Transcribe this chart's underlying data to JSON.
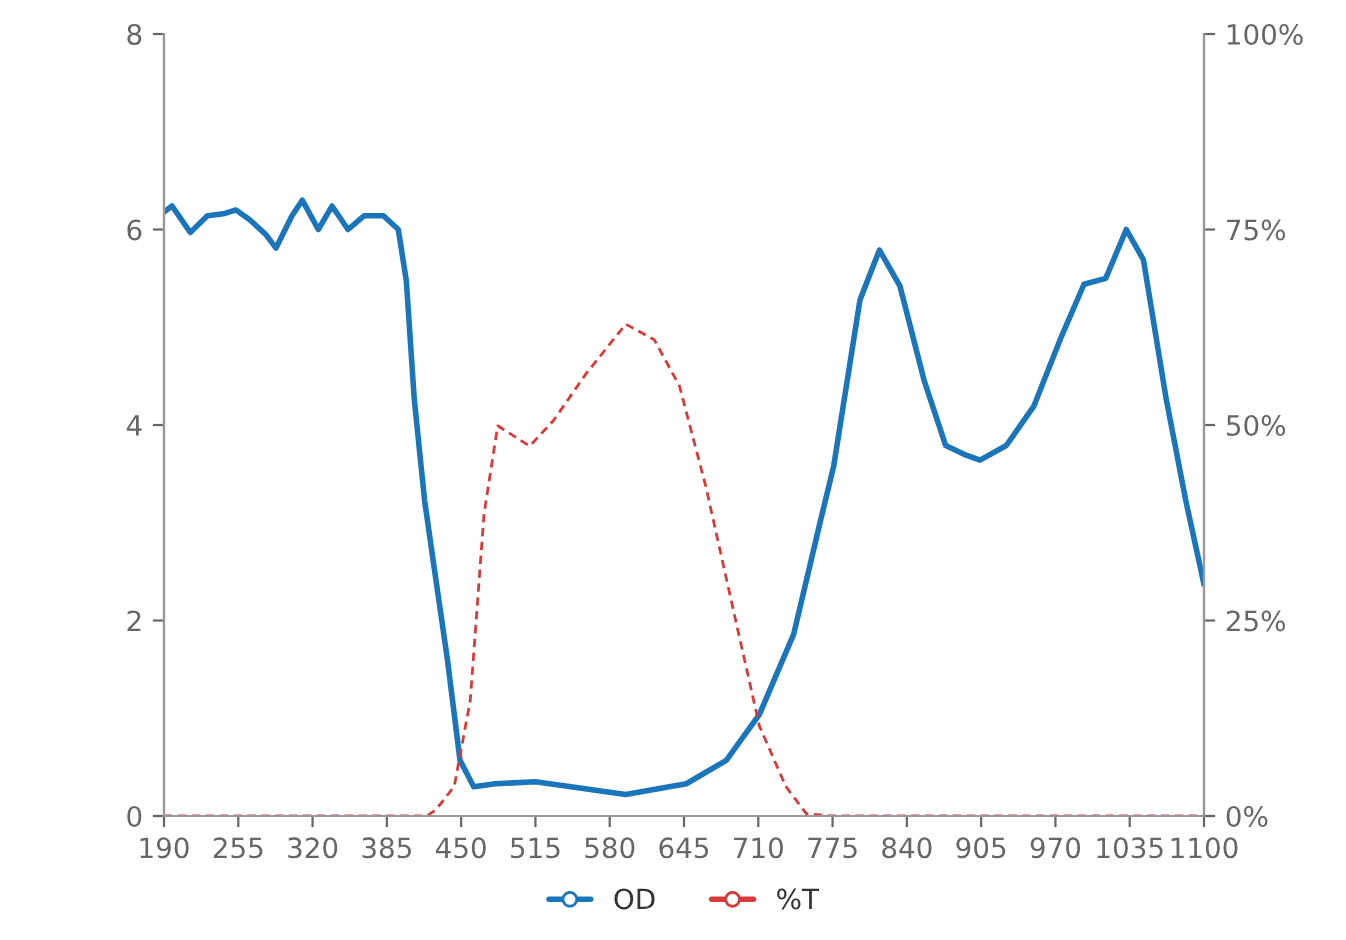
{
  "chart_data": {
    "type": "line",
    "xlim": [
      190,
      1100
    ],
    "xticks": [
      190,
      255,
      320,
      385,
      450,
      515,
      580,
      645,
      710,
      775,
      840,
      905,
      970,
      1035,
      1100
    ],
    "ylim": [
      0,
      8
    ],
    "yticks": [
      0,
      2,
      4,
      6,
      8
    ],
    "y2lim": [
      0,
      100
    ],
    "y2ticks": [
      {
        "value": 0,
        "label": "0%"
      },
      {
        "value": 25,
        "label": "25%"
      },
      {
        "value": 50,
        "label": "50%"
      },
      {
        "value": 75,
        "label": "75%"
      },
      {
        "value": 100,
        "label": "100%"
      }
    ],
    "grid": false,
    "legend": "bottom",
    "series": [
      {
        "name": "OD",
        "color": "#1a75bb",
        "line_style": "solid",
        "x": [
          190,
          197,
          213,
          228,
          242,
          253,
          265,
          279,
          288,
          302,
          311,
          325,
          337,
          351,
          365,
          382,
          395,
          402,
          409,
          418,
          428,
          438,
          449,
          461,
          480,
          515,
          594,
          647,
          682,
          711,
          741,
          764,
          776,
          799,
          816,
          834,
          855,
          874,
          890,
          904,
          927,
          951,
          974,
          995,
          1014,
          1032,
          1047,
          1067,
          1084,
          1100
        ],
        "values": [
          6.18,
          6.24,
          5.97,
          6.14,
          6.16,
          6.2,
          6.1,
          5.95,
          5.81,
          6.14,
          6.3,
          6.0,
          6.24,
          6.0,
          6.14,
          6.14,
          6.0,
          5.48,
          4.26,
          3.23,
          2.41,
          1.6,
          0.57,
          0.3,
          0.33,
          0.35,
          0.22,
          0.33,
          0.57,
          1.04,
          1.86,
          3.0,
          3.58,
          5.28,
          5.79,
          5.42,
          4.46,
          3.79,
          3.7,
          3.64,
          3.79,
          4.19,
          4.87,
          5.44,
          5.5,
          6.0,
          5.69,
          4.26,
          3.23,
          2.37
        ]
      },
      {
        "name": "%T",
        "color": "#d83a3a",
        "line_style": "dashed",
        "axis": "y2",
        "x": [
          190,
          420,
          428,
          444,
          458,
          470,
          482,
          510,
          531,
          559,
          594,
          619,
          641,
          664,
          689,
          711,
          734,
          752,
          775,
          1100
        ],
        "values": [
          0,
          0,
          0.8,
          3.8,
          14.8,
          38.6,
          49.9,
          47.3,
          50.6,
          56.5,
          62.9,
          60.9,
          55,
          42.2,
          25.8,
          11.5,
          3.8,
          0.3,
          0,
          0
        ]
      }
    ]
  }
}
